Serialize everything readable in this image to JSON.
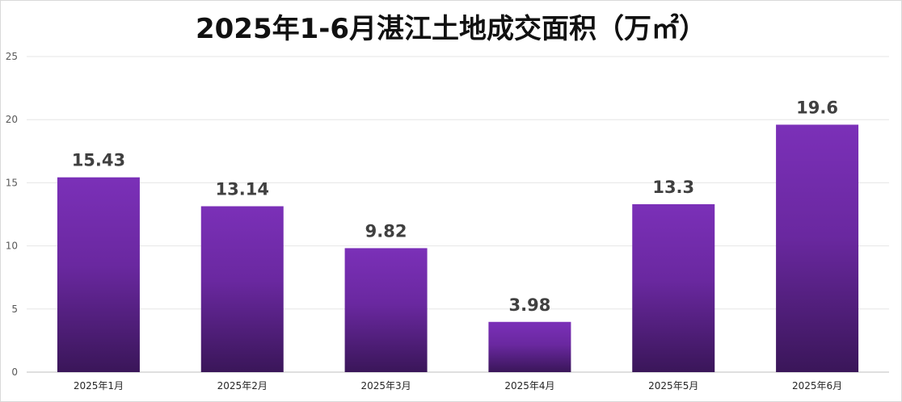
{
  "chart_data": {
    "type": "bar",
    "title": "2025年1-6月湛江土地成交面积（万㎡）",
    "categories": [
      "2025年1月",
      "2025年2月",
      "2025年3月",
      "2025年4月",
      "2025年5月",
      "2025年6月"
    ],
    "values": [
      15.43,
      13.14,
      9.82,
      3.98,
      13.3,
      19.6
    ],
    "value_labels": [
      "15.43",
      "13.14",
      "9.82",
      "3.98",
      "13.3",
      "19.6"
    ],
    "ylim": [
      0,
      25
    ],
    "yticks": [
      "0",
      "5",
      "10",
      "15",
      "20",
      "25"
    ],
    "grid": true,
    "legend": "none",
    "colors": {
      "bar_top": "#7b30b8",
      "bar_bottom": "#3a1659",
      "grid": "#e6e6e6",
      "axis": "#bfbfbf"
    }
  }
}
